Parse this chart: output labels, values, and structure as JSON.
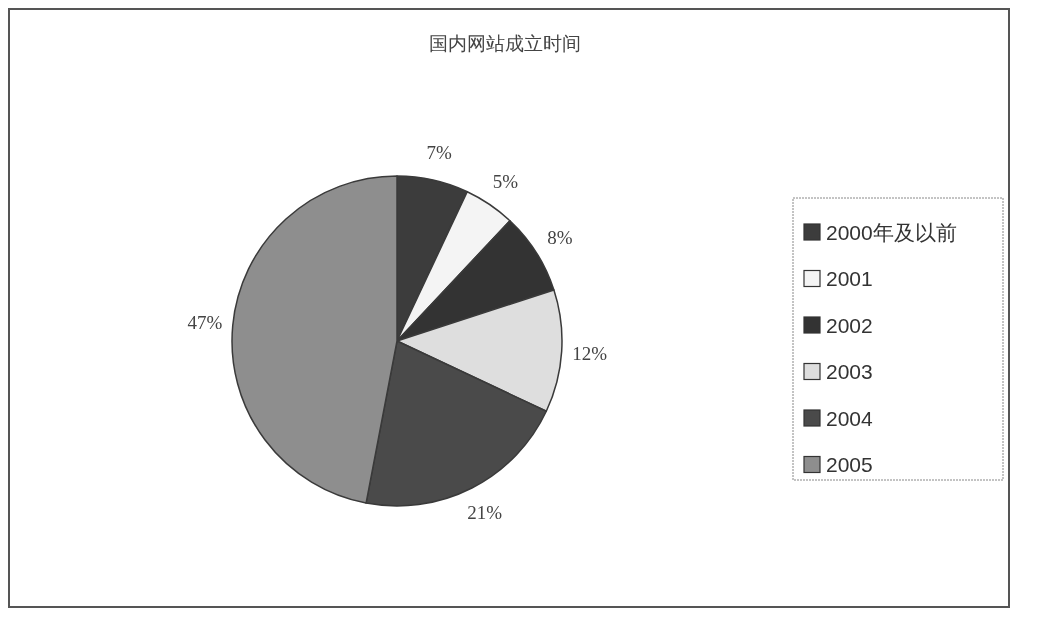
{
  "chart_data": {
    "type": "pie",
    "title": "国内网站成立时间",
    "categories": [
      "2000年及以前",
      "2001",
      "2002",
      "2003",
      "2004",
      "2005"
    ],
    "values": [
      7,
      5,
      8,
      12,
      21,
      47
    ],
    "colors": [
      "#3c3c3c",
      "#f4f4f4",
      "#333333",
      "#dedede",
      "#4a4a4a",
      "#8e8e8e"
    ],
    "value_labels": [
      "7%",
      "5%",
      "8%",
      "12%",
      "21%",
      "47%"
    ],
    "legend": "right"
  }
}
